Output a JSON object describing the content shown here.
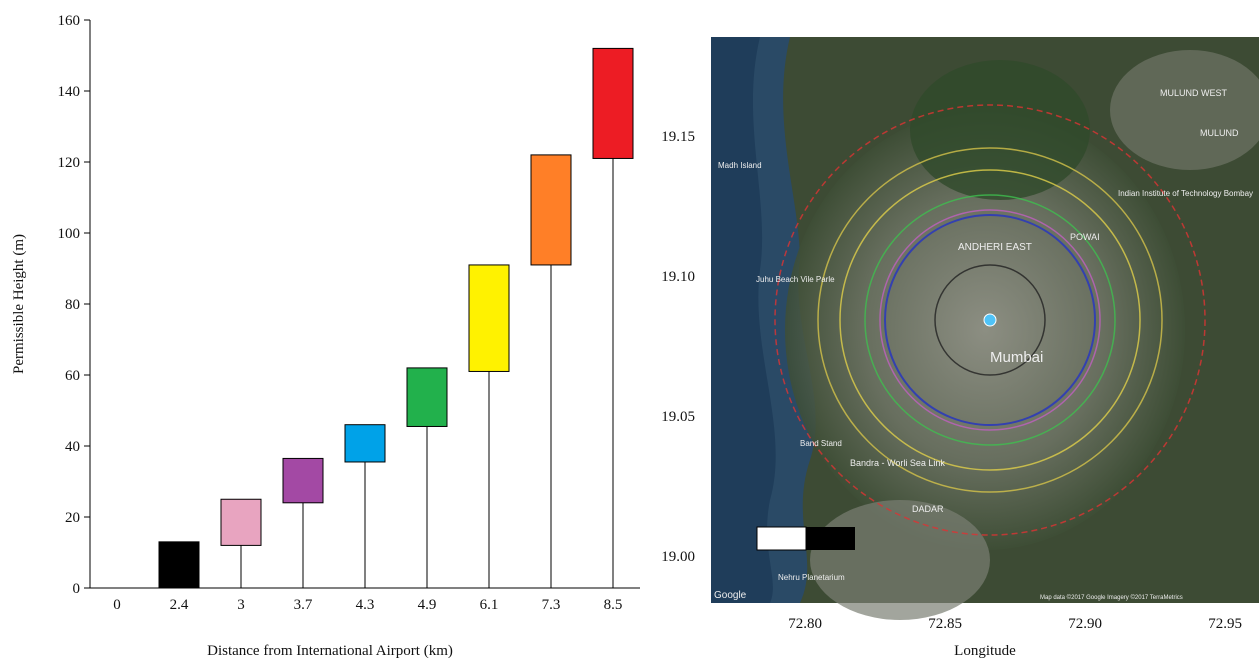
{
  "chart_data": [
    {
      "type": "range_bar",
      "xlabel": "Distance from International Airport (km)",
      "ylabel": "Permissible Height (m)",
      "categories": [
        "0",
        "2.4",
        "3",
        "3.7",
        "4.3",
        "4.9",
        "6.1",
        "7.3",
        "8.5"
      ],
      "low": [
        null,
        0,
        12,
        24,
        35.5,
        45.5,
        61,
        91,
        121
      ],
      "high": [
        null,
        13,
        25,
        36.5,
        46,
        62,
        91,
        122,
        152
      ],
      "colors": [
        null,
        "#000000",
        "#e8a4c0",
        "#a349a4",
        "#00a2e8",
        "#22b14c",
        "#fff200",
        "#ff7f27",
        "#ed1c24"
      ],
      "ylim": [
        0,
        160
      ],
      "yticks": [
        0,
        20,
        40,
        60,
        80,
        100,
        120,
        140,
        160
      ]
    },
    {
      "type": "map",
      "xlabel": "Longitude",
      "xlim": [
        72.7664,
        72.9621
      ],
      "xticks": [
        {
          "value": 72.8,
          "label": "72.80"
        },
        {
          "value": 72.85,
          "label": "72.85"
        },
        {
          "value": 72.9,
          "label": "72.90"
        },
        {
          "value": 72.95,
          "label": "72.95"
        }
      ],
      "ylim": [
        18.9832,
        19.1854
      ],
      "yticks": [
        {
          "value": 19.0,
          "label": "19.00"
        },
        {
          "value": 19.05,
          "label": "19.05"
        },
        {
          "value": 19.1,
          "label": "19.10"
        },
        {
          "value": 19.15,
          "label": "19.15"
        }
      ],
      "map_labels": [
        "MULUND WEST",
        "MULUND",
        "Madh Island",
        "Indian Institute of Technology Bombay",
        "Juhu Beach Vile Parle",
        "POWAI",
        "ANDHERI EAST",
        "Mumbai",
        "Band Stand",
        "Bandra - Worli Sea Link",
        "DADAR",
        "Nehru Planetarium",
        "Google",
        "Map data ©2017 Google  Imagery ©2017 TerraMetrics"
      ]
    }
  ]
}
